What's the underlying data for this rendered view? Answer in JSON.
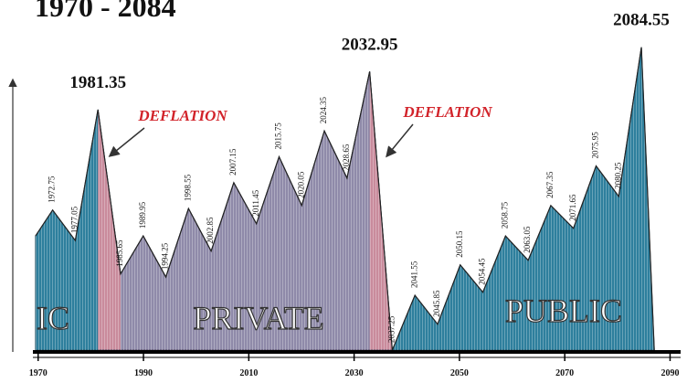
{
  "chart_data": {
    "type": "area",
    "title": "1970 - 2084",
    "x": [
      1969.5,
      1972.75,
      1977.05,
      1981.35,
      1985.65,
      1989.95,
      1994.25,
      1998.55,
      2002.85,
      2007.15,
      2011.45,
      2015.75,
      2020.05,
      2024.35,
      2028.65,
      2032.95,
      2037.25,
      2041.55,
      2045.85,
      2050.15,
      2054.45,
      2058.75,
      2063.05,
      2067.35,
      2071.65,
      2075.95,
      2080.25,
      2084.55,
      2087
    ],
    "values": [
      37.5,
      46,
      36,
      79,
      25,
      37.5,
      24,
      46.5,
      32.5,
      55,
      41.5,
      63.5,
      47.5,
      72,
      56.5,
      91.5,
      0,
      18,
      8.5,
      28,
      19,
      37.5,
      29.5,
      47.5,
      40,
      60.5,
      50.5,
      99.5,
      0
    ],
    "color": "#2e7f9d",
    "bands": [
      {
        "from": 1981.35,
        "to": 1985.65,
        "color": "#c98b9c"
      },
      {
        "from": 1985.65,
        "to": 2032.95,
        "color": "#8f8aa9"
      },
      {
        "from": 2032.95,
        "to": 2037.25,
        "color": "#c98b9c"
      }
    ],
    "annotations": [
      "DEFLATION",
      "DEFLATION"
    ],
    "region_labels": [
      "IC",
      "PRIVATE",
      "PUBLIC"
    ],
    "xlim": [
      1969,
      2092
    ],
    "xticks": [
      1970,
      1990,
      2010,
      2030,
      2050,
      2070,
      2090
    ],
    "ylim": [
      0,
      100
    ]
  }
}
